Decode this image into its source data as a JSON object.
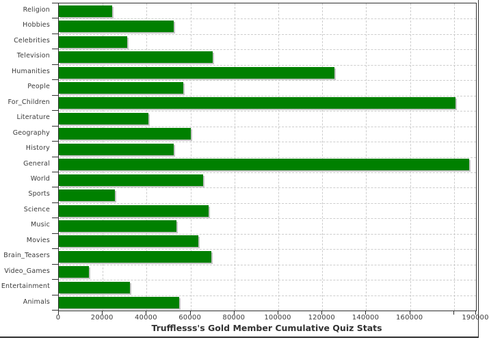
{
  "chart_data": {
    "type": "bar",
    "orientation": "horizontal",
    "title": "Trufflesss's Gold Member Cumulative Quiz Stats",
    "categories": [
      "Religion",
      "Hobbies",
      "Celebrities",
      "Television",
      "Humanities",
      "People",
      "For_Children",
      "Literature",
      "Geography",
      "History",
      "General",
      "World",
      "Sports",
      "Science",
      "Music",
      "Movies",
      "Brain_Teasers",
      "Video_Games",
      "Entertainment",
      "Animals"
    ],
    "values": [
      24300,
      52400,
      31300,
      70000,
      125500,
      56800,
      180500,
      40900,
      60000,
      52300,
      187000,
      65700,
      25400,
      68300,
      53700,
      63400,
      69500,
      13700,
      32500,
      54800
    ],
    "xlim": [
      0,
      190000
    ],
    "x_ticks": [
      0,
      20000,
      40000,
      60000,
      80000,
      100000,
      120000,
      140000,
      160000,
      180000,
      190000
    ],
    "x_tick_labels": [
      "0",
      "20000",
      "40000",
      "60000",
      "80000",
      "100000",
      "120000",
      "140000",
      "160000",
      "",
      "190000"
    ],
    "grid": true,
    "legend": "none",
    "colors": {
      "bar": "#008000",
      "bar_shadow": "#c5c5c5",
      "gridline": "#cccccc",
      "axis": "#2e2e2e",
      "tick_text": "#3a3a3a",
      "title_text": "#333333",
      "background": "#ffffff"
    }
  }
}
